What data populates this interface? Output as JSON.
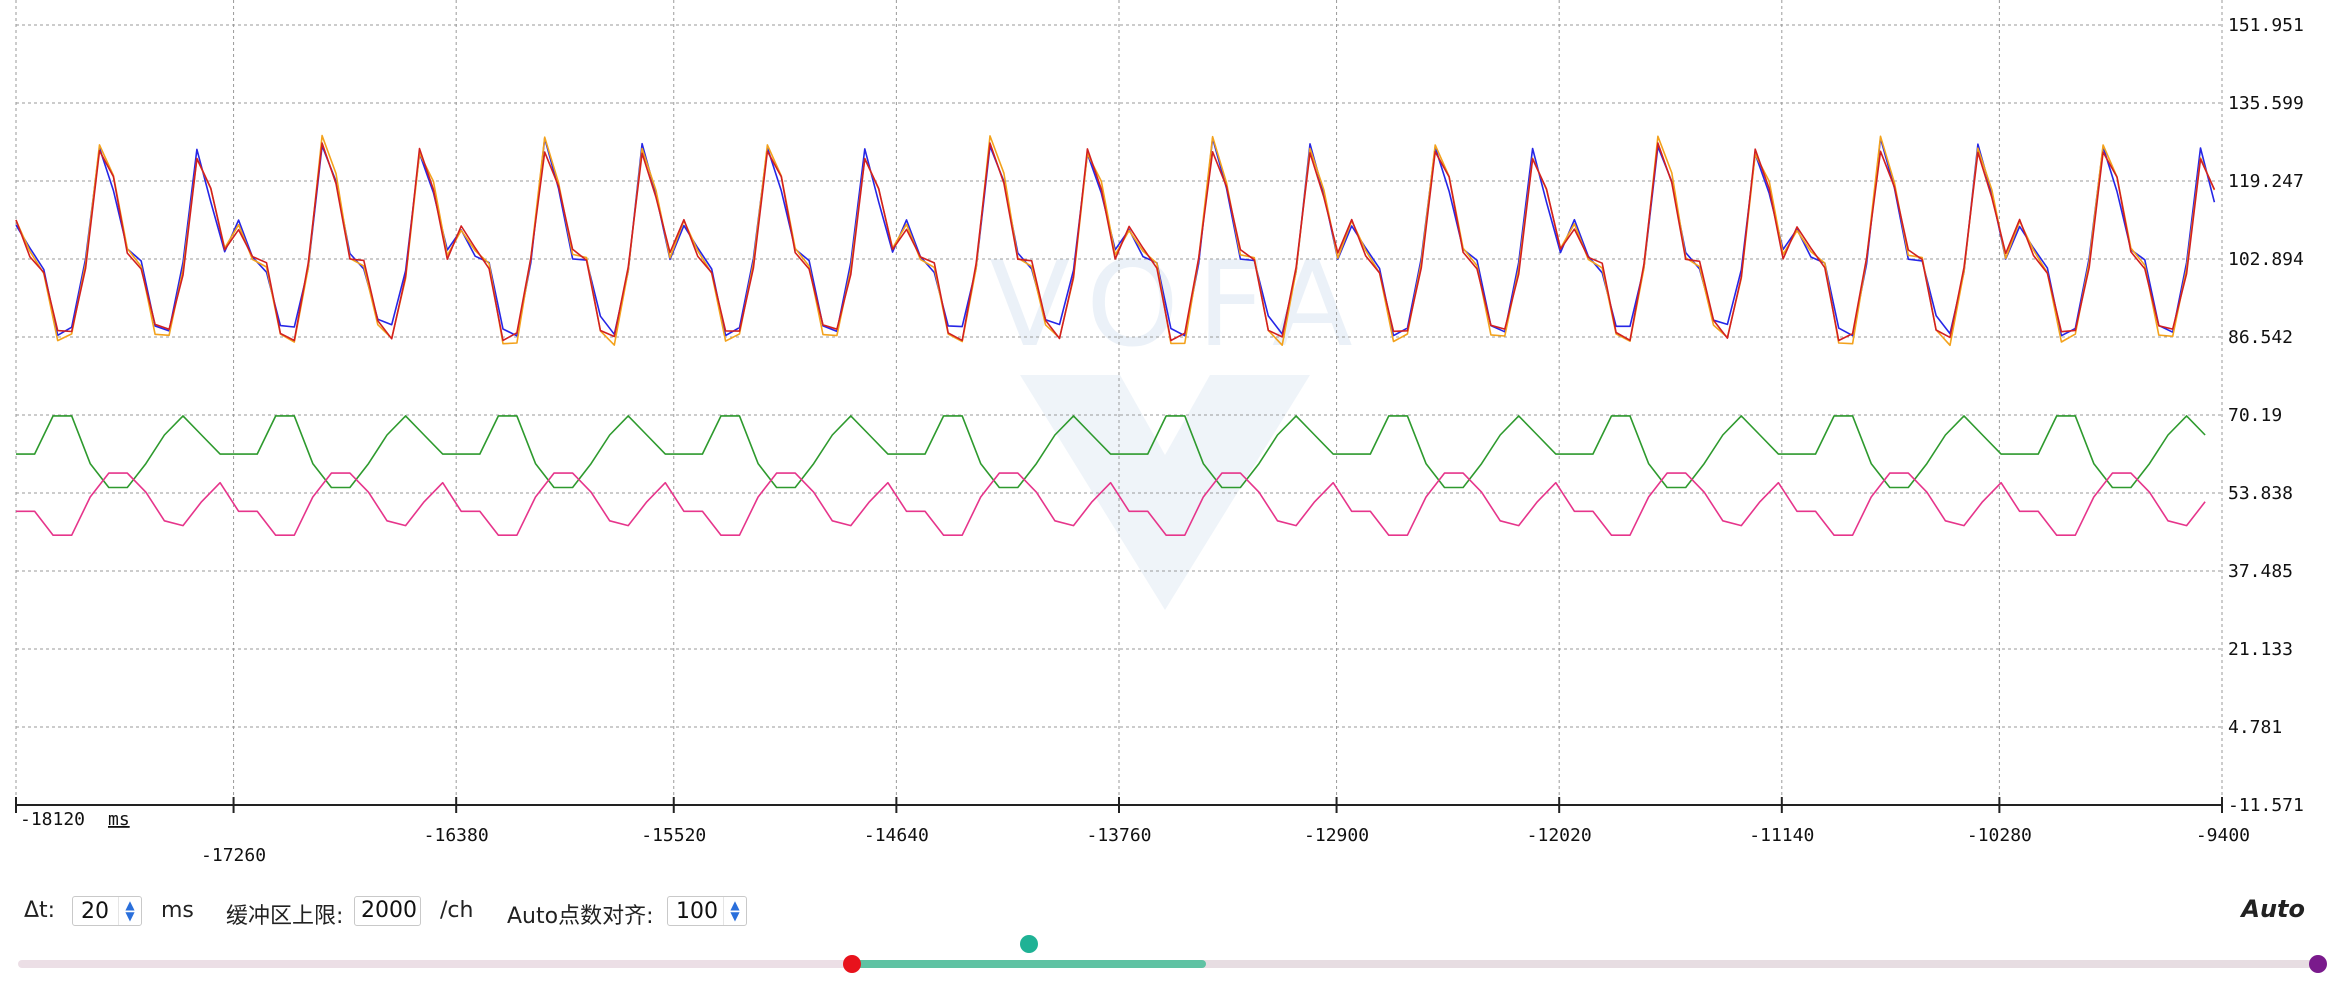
{
  "watermark": {
    "text": "VOFA"
  },
  "plot": {
    "y_ticks": [
      "151.951",
      "135.599",
      "119.247",
      "102.894",
      "86.542",
      "70.19",
      "53.838",
      "37.485",
      "21.133",
      "4.781",
      "-11.571"
    ],
    "x_ticks": [
      "-18120",
      "-17260",
      "-16380",
      "-15520",
      "-14640",
      "-13760",
      "-12900",
      "-12020",
      "-11140",
      "-10280",
      "-9400"
    ],
    "x_unit": "ms"
  },
  "chart_data": {
    "type": "line",
    "x_range": [
      -18120,
      -9400
    ],
    "ylim": [
      -11.571,
      151.951
    ],
    "grid": true,
    "period_ms": 880,
    "series": [
      {
        "color": "#2626e6",
        "values": [
          110,
          104,
          101,
          88,
          88,
          102,
          127,
          118,
          104,
          102,
          90,
          88,
          101,
          126,
          116,
          104,
          102
        ]
      },
      {
        "color": "#f3a21c",
        "values": [
          110,
          104,
          101,
          86,
          86,
          102,
          128,
          120,
          104,
          102,
          88,
          86,
          100,
          125,
          118,
          104,
          102
        ]
      },
      {
        "color": "#d22020",
        "values": [
          110,
          104,
          101,
          87,
          87,
          102,
          126,
          119,
          104,
          102,
          89,
          87,
          100,
          125,
          117,
          104,
          102
        ]
      },
      {
        "color": "#2e9a2e",
        "values": [
          62,
          62,
          70,
          70,
          60,
          55,
          55,
          60,
          66,
          70,
          66,
          62,
          62
        ]
      },
      {
        "color": "#e6358b",
        "values": [
          50,
          50,
          45,
          45,
          53,
          58,
          58,
          54,
          48,
          47,
          52,
          56,
          55
        ]
      }
    ]
  },
  "controls": {
    "dt_label": "Δt:",
    "dt_value": "20",
    "dt_unit": "ms",
    "buffer_label": "缓冲区上限:",
    "buffer_value": "2000",
    "buffer_unit": "/ch",
    "auto_align_label": "Auto点数对齐:",
    "auto_align_value": "100",
    "auto_button": "Auto"
  },
  "slider": {
    "range_start": 0.3627,
    "range_end": 0.5167,
    "thumb_position": 0.4397,
    "right_marker": 1.0,
    "colors": {
      "track": "#ecdfe6",
      "range": "#5fc2a3",
      "start": "#e8121c",
      "thumb": "#1fb295",
      "end": "#7a1a8c"
    }
  }
}
